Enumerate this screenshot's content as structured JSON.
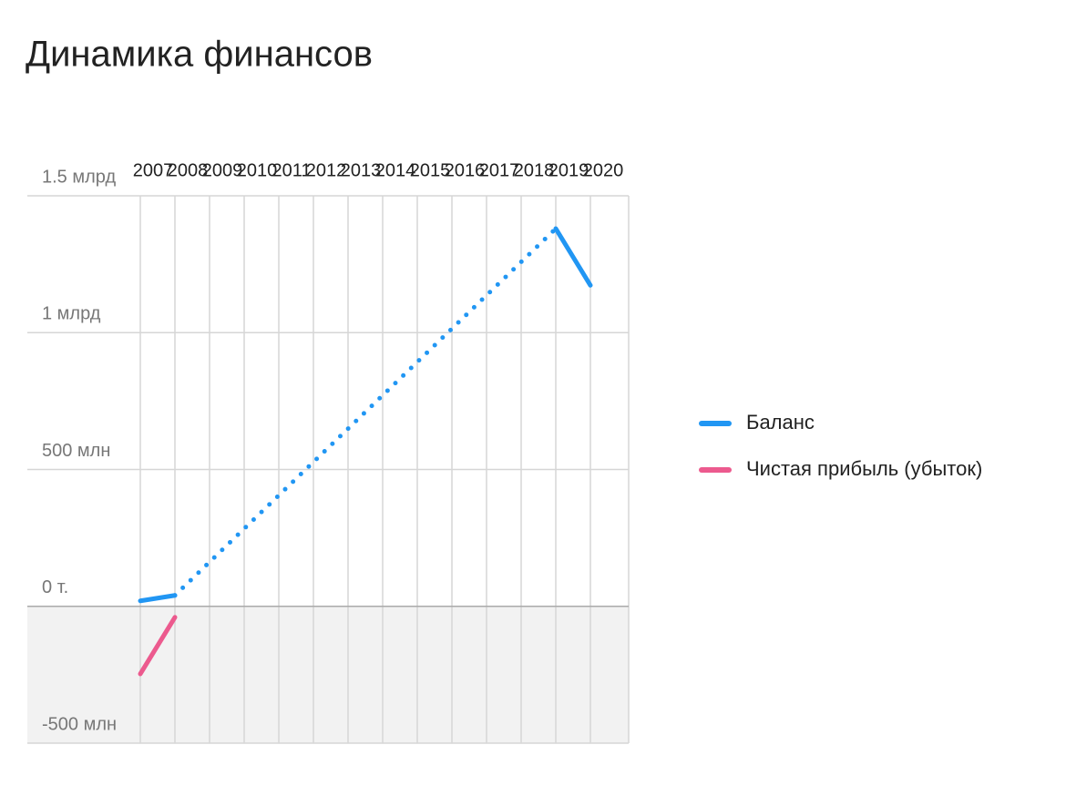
{
  "chart_data": {
    "type": "line",
    "title": "Динамика финансов",
    "categories": [
      "2007",
      "2008",
      "2009",
      "2010",
      "2011",
      "2012",
      "2013",
      "2014",
      "2015",
      "2016",
      "2017",
      "2018",
      "2019",
      "2020"
    ],
    "series": [
      {
        "name": "Баланс",
        "color": "#2196f3",
        "values": [
          20000000,
          40000000,
          null,
          null,
          null,
          null,
          null,
          null,
          null,
          null,
          null,
          null,
          1380000000,
          1173000000
        ]
      },
      {
        "name": "Чистая прибыль (убыток)",
        "color": "#ec5a8e",
        "values": [
          -247000000,
          -40000000,
          null,
          null,
          null,
          null,
          null,
          null,
          null,
          null,
          null,
          null,
          null,
          null
        ]
      }
    ],
    "ylim": [
      -500000000,
      1500000000
    ],
    "yticks": [
      {
        "value": -500000000,
        "label": "-500 млн"
      },
      {
        "value": 0,
        "label": "0 т."
      },
      {
        "value": 500000000,
        "label": "500 млн"
      },
      {
        "value": 1000000000,
        "label": "1 млрд"
      },
      {
        "value": 1500000000,
        "label": "1.5 млрд"
      }
    ],
    "grid": true,
    "legend": "right"
  }
}
